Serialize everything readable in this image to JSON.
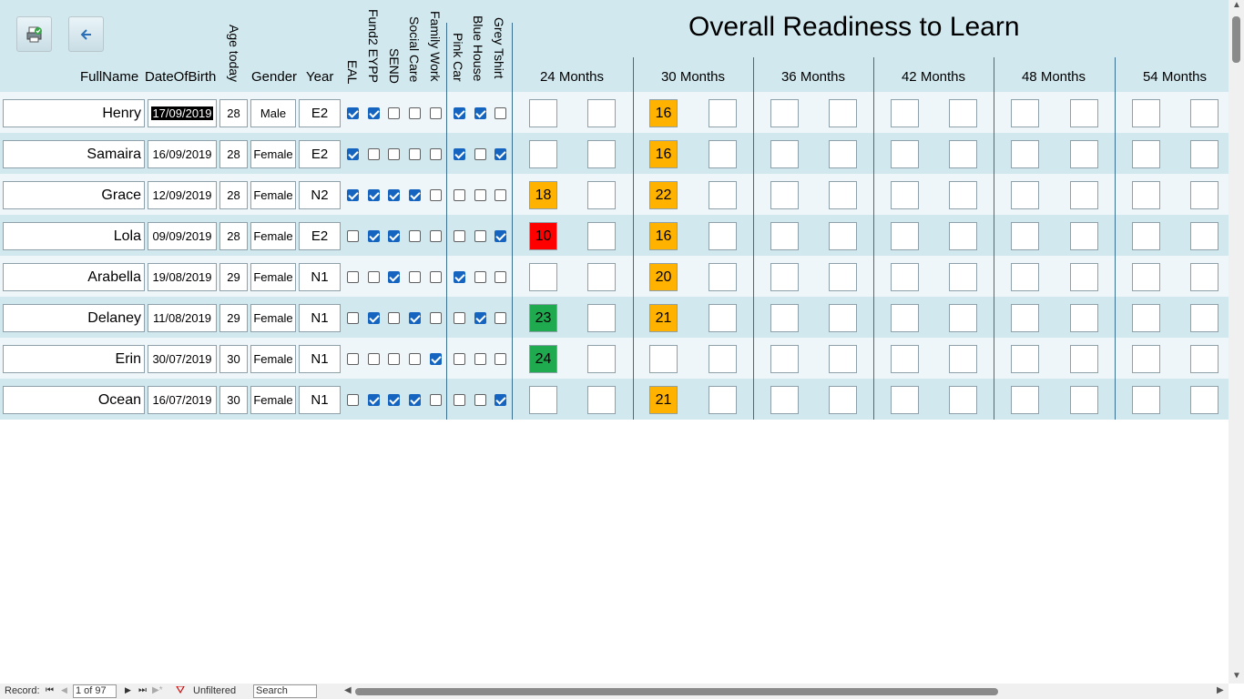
{
  "toolbar": {
    "print_icon": "printer-check-icon",
    "back_icon": "back-arrow-icon"
  },
  "headers": {
    "full_name": "FullName",
    "dob": "DateOfBirth",
    "age": "Age today",
    "gender": "Gender",
    "year": "Year",
    "flags": [
      "EAL",
      "Fund2 EYPP",
      "SEND",
      "Social Care",
      "Family Work",
      "Pink Car",
      "Blue House",
      "Grey Tshirt"
    ],
    "title": "Overall Readiness to Learn",
    "months": [
      "24 Months",
      "30 Months",
      "36 Months",
      "42 Months",
      "48 Months",
      "54 Months"
    ]
  },
  "colors": {
    "amber": "#ffb200",
    "red": "#ff0000",
    "green": "#1faa4f",
    "header_bg": "#d1e8ee",
    "check_blue": "#1565c0"
  },
  "rows": [
    {
      "name": "Henry",
      "dob": "17/09/2019",
      "selected": true,
      "age": "28",
      "gender": "Male",
      "year": "E2",
      "flags": [
        1,
        1,
        0,
        0,
        0,
        1,
        1,
        0
      ],
      "scores": [
        {
          "v": "",
          "c": ""
        },
        {
          "v": "",
          "c": ""
        },
        {
          "v": "16",
          "c": "amber"
        },
        {
          "v": "",
          "c": ""
        },
        {
          "v": "",
          "c": ""
        },
        {
          "v": "",
          "c": ""
        },
        {
          "v": "",
          "c": ""
        },
        {
          "v": "",
          "c": ""
        },
        {
          "v": "",
          "c": ""
        },
        {
          "v": "",
          "c": ""
        },
        {
          "v": "",
          "c": ""
        },
        {
          "v": "",
          "c": ""
        }
      ]
    },
    {
      "name": "Samaira",
      "dob": "16/09/2019",
      "age": "28",
      "gender": "Female",
      "year": "E2",
      "flags": [
        1,
        0,
        0,
        0,
        0,
        1,
        0,
        1
      ],
      "scores": [
        {
          "v": "",
          "c": ""
        },
        {
          "v": "",
          "c": ""
        },
        {
          "v": "16",
          "c": "amber"
        },
        {
          "v": "",
          "c": ""
        },
        {
          "v": "",
          "c": ""
        },
        {
          "v": "",
          "c": ""
        },
        {
          "v": "",
          "c": ""
        },
        {
          "v": "",
          "c": ""
        },
        {
          "v": "",
          "c": ""
        },
        {
          "v": "",
          "c": ""
        },
        {
          "v": "",
          "c": ""
        },
        {
          "v": "",
          "c": ""
        }
      ]
    },
    {
      "name": "Grace",
      "dob": "12/09/2019",
      "age": "28",
      "gender": "Female",
      "year": "N2",
      "flags": [
        1,
        1,
        1,
        1,
        0,
        0,
        0,
        0
      ],
      "scores": [
        {
          "v": "18",
          "c": "amber"
        },
        {
          "v": "",
          "c": ""
        },
        {
          "v": "22",
          "c": "amber"
        },
        {
          "v": "",
          "c": ""
        },
        {
          "v": "",
          "c": ""
        },
        {
          "v": "",
          "c": ""
        },
        {
          "v": "",
          "c": ""
        },
        {
          "v": "",
          "c": ""
        },
        {
          "v": "",
          "c": ""
        },
        {
          "v": "",
          "c": ""
        },
        {
          "v": "",
          "c": ""
        },
        {
          "v": "",
          "c": ""
        }
      ]
    },
    {
      "name": "Lola",
      "dob": "09/09/2019",
      "age": "28",
      "gender": "Female",
      "year": "E2",
      "flags": [
        0,
        1,
        1,
        0,
        0,
        0,
        0,
        1
      ],
      "scores": [
        {
          "v": "10",
          "c": "red"
        },
        {
          "v": "",
          "c": ""
        },
        {
          "v": "16",
          "c": "amber"
        },
        {
          "v": "",
          "c": ""
        },
        {
          "v": "",
          "c": ""
        },
        {
          "v": "",
          "c": ""
        },
        {
          "v": "",
          "c": ""
        },
        {
          "v": "",
          "c": ""
        },
        {
          "v": "",
          "c": ""
        },
        {
          "v": "",
          "c": ""
        },
        {
          "v": "",
          "c": ""
        },
        {
          "v": "",
          "c": ""
        }
      ]
    },
    {
      "name": "Arabella",
      "dob": "19/08/2019",
      "age": "29",
      "gender": "Female",
      "year": "N1",
      "flags": [
        0,
        0,
        1,
        0,
        0,
        1,
        0,
        0
      ],
      "scores": [
        {
          "v": "",
          "c": ""
        },
        {
          "v": "",
          "c": ""
        },
        {
          "v": "20",
          "c": "amber"
        },
        {
          "v": "",
          "c": ""
        },
        {
          "v": "",
          "c": ""
        },
        {
          "v": "",
          "c": ""
        },
        {
          "v": "",
          "c": ""
        },
        {
          "v": "",
          "c": ""
        },
        {
          "v": "",
          "c": ""
        },
        {
          "v": "",
          "c": ""
        },
        {
          "v": "",
          "c": ""
        },
        {
          "v": "",
          "c": ""
        }
      ]
    },
    {
      "name": "Delaney",
      "dob": "11/08/2019",
      "age": "29",
      "gender": "Female",
      "year": "N1",
      "flags": [
        0,
        1,
        0,
        1,
        0,
        0,
        1,
        0
      ],
      "scores": [
        {
          "v": "23",
          "c": "green"
        },
        {
          "v": "",
          "c": ""
        },
        {
          "v": "21",
          "c": "amber"
        },
        {
          "v": "",
          "c": ""
        },
        {
          "v": "",
          "c": ""
        },
        {
          "v": "",
          "c": ""
        },
        {
          "v": "",
          "c": ""
        },
        {
          "v": "",
          "c": ""
        },
        {
          "v": "",
          "c": ""
        },
        {
          "v": "",
          "c": ""
        },
        {
          "v": "",
          "c": ""
        },
        {
          "v": "",
          "c": ""
        }
      ]
    },
    {
      "name": "Erin",
      "dob": "30/07/2019",
      "age": "30",
      "gender": "Female",
      "year": "N1",
      "flags": [
        0,
        0,
        0,
        0,
        1,
        0,
        0,
        0
      ],
      "scores": [
        {
          "v": "24",
          "c": "green"
        },
        {
          "v": "",
          "c": ""
        },
        {
          "v": "",
          "c": ""
        },
        {
          "v": "",
          "c": ""
        },
        {
          "v": "",
          "c": ""
        },
        {
          "v": "",
          "c": ""
        },
        {
          "v": "",
          "c": ""
        },
        {
          "v": "",
          "c": ""
        },
        {
          "v": "",
          "c": ""
        },
        {
          "v": "",
          "c": ""
        },
        {
          "v": "",
          "c": ""
        },
        {
          "v": "",
          "c": ""
        }
      ]
    },
    {
      "name": "Ocean",
      "dob": "16/07/2019",
      "age": "30",
      "gender": "Female",
      "year": "N1",
      "flags": [
        0,
        1,
        1,
        1,
        0,
        0,
        0,
        1
      ],
      "scores": [
        {
          "v": "",
          "c": ""
        },
        {
          "v": "",
          "c": ""
        },
        {
          "v": "21",
          "c": "amber"
        },
        {
          "v": "",
          "c": ""
        },
        {
          "v": "",
          "c": ""
        },
        {
          "v": "",
          "c": ""
        },
        {
          "v": "",
          "c": ""
        },
        {
          "v": "",
          "c": ""
        },
        {
          "v": "",
          "c": ""
        },
        {
          "v": "",
          "c": ""
        },
        {
          "v": "",
          "c": ""
        },
        {
          "v": "",
          "c": ""
        }
      ]
    }
  ],
  "navigation": {
    "record_label": "Record:",
    "record_value": "1 of 97",
    "filter_label": "Unfiltered",
    "search_text": "Search"
  }
}
